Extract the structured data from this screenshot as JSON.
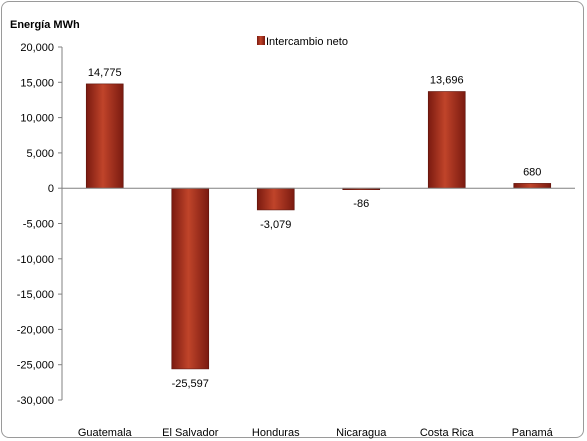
{
  "chart_data": {
    "type": "bar",
    "ylabel": "Energía MWh",
    "categories": [
      "Guatemala",
      "El Salvador",
      "Honduras",
      "Nicaragua",
      "Costa Rica",
      "Panamá"
    ],
    "series": [
      {
        "name": "Intercambio neto",
        "values": [
          14775,
          -25597,
          -3079,
          -86,
          13696,
          680
        ],
        "data_labels": [
          "14,775",
          "-25,597",
          "-3,079",
          "-86",
          "13,696",
          "680"
        ]
      }
    ],
    "ylim": [
      -30000,
      20000
    ],
    "yticks": [
      20000,
      15000,
      10000,
      5000,
      0,
      -5000,
      -10000,
      -15000,
      -20000,
      -25000,
      -30000
    ],
    "ytick_labels": [
      "20,000",
      "15,000",
      "10,000",
      "5,000",
      "0",
      "-5,000",
      "-10,000",
      "-15,000",
      "-20,000",
      "-25,000",
      "-30,000"
    ],
    "grid": false,
    "legend_position": "top",
    "colors": {
      "bar_dark": "#7a1a10",
      "bar_mid": "#b83a22",
      "bar_light": "#d86a4a",
      "axis": "#808080"
    }
  }
}
